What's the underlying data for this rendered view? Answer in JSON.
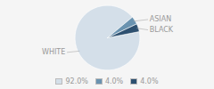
{
  "chart_data": {
    "type": "pie",
    "categories": [
      "WHITE",
      "ASIAN",
      "BLACK"
    ],
    "values": [
      92.0,
      4.0,
      4.0
    ],
    "value_labels": [
      "92.0%",
      "4.0%",
      "4.0%"
    ],
    "colors": [
      "#d4dfe9",
      "#6a93b0",
      "#2d5070"
    ],
    "legend": "bottom"
  }
}
